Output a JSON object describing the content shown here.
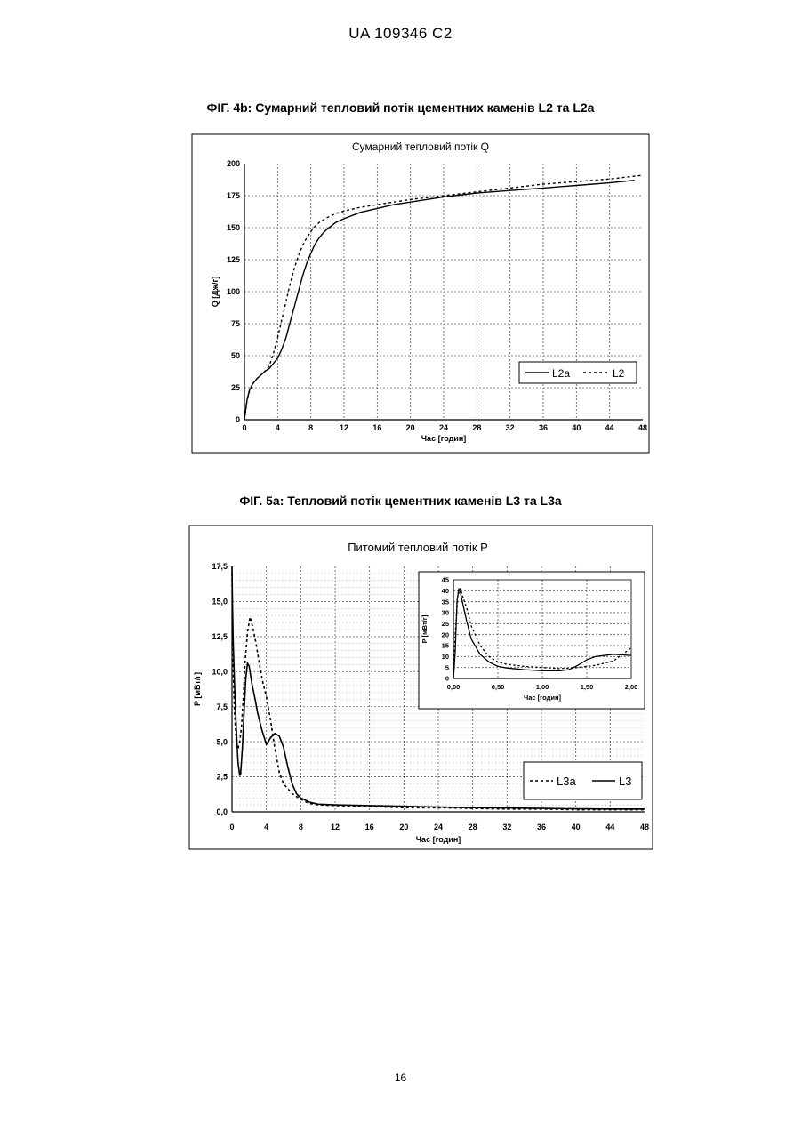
{
  "header": {
    "doc_id": "UA   109346   C2"
  },
  "fig1": {
    "caption": "ФІГ. 4b: Сумарний тепловий потік цементних каменів L2 та L2a"
  },
  "fig2": {
    "caption": "ФІГ. 5а: Тепловий потік цементних каменів L3 та L3a"
  },
  "footer": {
    "page_number": "16"
  },
  "chart_data": [
    {
      "type": "line",
      "title": "Сумарний тепловий потік Q",
      "xlabel": "Час [годин]",
      "ylabel": "Q [Дж/г]",
      "xlim": [
        0,
        48
      ],
      "ylim": [
        0,
        200
      ],
      "xticks": [
        0,
        4,
        8,
        12,
        16,
        20,
        24,
        28,
        32,
        36,
        40,
        44,
        48
      ],
      "yticks": [
        0,
        25,
        50,
        75,
        100,
        125,
        150,
        175,
        200
      ],
      "grid": true,
      "legend_position": "bottom-right",
      "series": [
        {
          "name": "L2a",
          "style": "solid",
          "x": [
            0,
            0.3,
            0.6,
            1,
            1.5,
            2,
            2.5,
            3,
            3.5,
            4,
            4.5,
            5,
            5.5,
            6,
            6.5,
            7,
            7.5,
            8,
            8.5,
            9,
            9.5,
            10,
            11,
            12,
            14,
            16,
            18,
            20,
            24,
            28,
            32,
            36,
            40,
            44,
            47
          ],
          "y": [
            0,
            15,
            23,
            28,
            32,
            35,
            38,
            40,
            44,
            48,
            55,
            64,
            76,
            88,
            100,
            112,
            122,
            130,
            137,
            142,
            146,
            149,
            154,
            157,
            162,
            165,
            168,
            170,
            174,
            177,
            179,
            181,
            183,
            185,
            187
          ]
        },
        {
          "name": "L2",
          "style": "dashed",
          "x": [
            0,
            0.3,
            0.6,
            1,
            1.5,
            2,
            2.5,
            3,
            3.5,
            4,
            4.5,
            5,
            5.5,
            6,
            6.5,
            7,
            7.5,
            8,
            8.5,
            9,
            9.5,
            10,
            11,
            12,
            14,
            16,
            18,
            20,
            24,
            28,
            32,
            36,
            40,
            44,
            48
          ],
          "y": [
            0,
            14,
            22,
            28,
            32,
            35,
            38,
            42,
            52,
            64,
            78,
            92,
            106,
            118,
            128,
            136,
            142,
            147,
            151,
            154,
            156,
            158,
            161,
            163,
            166,
            168,
            170,
            172,
            175,
            178,
            181,
            184,
            186,
            188,
            191
          ]
        }
      ]
    },
    {
      "type": "line",
      "title": "Питомий тепловий потік P",
      "xlabel": "Час [годин]",
      "ylabel": "P [мВт/г]",
      "xlim": [
        0,
        48
      ],
      "ylim": [
        0,
        17.5
      ],
      "xticks": [
        0,
        4,
        8,
        12,
        16,
        20,
        24,
        28,
        32,
        36,
        40,
        44,
        48
      ],
      "yticks": [
        "0,0",
        "2,5",
        "5,0",
        "7,5",
        "10,0",
        "12,5",
        "15,0",
        "17,5"
      ],
      "grid": true,
      "legend_position": "bottom-right",
      "series": [
        {
          "name": "L3a",
          "style": "dashed",
          "x": [
            0,
            0.05,
            0.15,
            0.3,
            0.5,
            0.7,
            0.9,
            1.1,
            1.3,
            1.5,
            1.8,
            2.1,
            2.4,
            2.8,
            3.2,
            3.6,
            4.0,
            4.5,
            5,
            5.5,
            6,
            7,
            8,
            9,
            10,
            12,
            16,
            20,
            24,
            28,
            32,
            36,
            40,
            44,
            48
          ],
          "y": [
            17,
            14,
            10,
            7,
            5,
            4.5,
            5,
            6,
            8,
            10.5,
            12.8,
            13.9,
            13.2,
            12,
            10.5,
            9.2,
            8.2,
            6.5,
            4.5,
            2.8,
            2.0,
            1.3,
            0.9,
            0.6,
            0.5,
            0.45,
            0.4,
            0.3,
            0.3,
            0.25,
            0.2,
            0.2,
            0.15,
            0.15,
            0.15
          ]
        },
        {
          "name": "L3",
          "style": "solid",
          "x": [
            0,
            0.05,
            0.15,
            0.3,
            0.5,
            0.7,
            0.9,
            1.0,
            1.2,
            1.4,
            1.6,
            1.8,
            2.0,
            2.3,
            2.7,
            3.0,
            3.5,
            4.0,
            4.5,
            5,
            5.5,
            6,
            6.5,
            7,
            7.5,
            8,
            9,
            10,
            12,
            16,
            20,
            24,
            28,
            32,
            36,
            40,
            44,
            48
          ],
          "y": [
            17.5,
            15,
            12,
            9,
            6,
            3.5,
            2.6,
            2.7,
            4.5,
            7,
            9.5,
            10.6,
            10.4,
            9.2,
            8,
            7,
            5.8,
            4.8,
            5.3,
            5.6,
            5.4,
            4.6,
            3.2,
            2.0,
            1.3,
            1.0,
            0.7,
            0.55,
            0.5,
            0.45,
            0.4,
            0.35,
            0.3,
            0.28,
            0.25,
            0.22,
            0.2,
            0.2
          ]
        }
      ],
      "inset": {
        "type": "line",
        "xlabel": "Час [годин]",
        "ylabel": "P [мВт/г]",
        "xlim": [
          0,
          2
        ],
        "ylim": [
          0,
          45
        ],
        "xticks": [
          "0,00",
          "0,50",
          "1,00",
          "1,50",
          "2,00"
        ],
        "yticks": [
          0,
          5,
          10,
          15,
          20,
          25,
          30,
          35,
          40,
          45
        ],
        "grid": true,
        "series": [
          {
            "name": "L3a",
            "style": "dashed",
            "x": [
              0,
              0.02,
              0.05,
              0.08,
              0.1,
              0.15,
              0.2,
              0.3,
              0.4,
              0.5,
              0.6,
              0.8,
              1.0,
              1.2,
              1.4,
              1.6,
              1.8,
              2.0
            ],
            "y": [
              0,
              20,
              38,
              41,
              38,
              32,
              24,
              15,
              10,
              7.5,
              6.5,
              5.5,
              5,
              4.5,
              5,
              6,
              8,
              14
            ]
          },
          {
            "name": "L3",
            "style": "solid",
            "x": [
              0,
              0.02,
              0.04,
              0.06,
              0.08,
              0.1,
              0.15,
              0.2,
              0.3,
              0.4,
              0.5,
              0.6,
              0.8,
              1.0,
              1.2,
              1.3,
              1.4,
              1.5,
              1.6,
              1.8,
              2.0
            ],
            "y": [
              0,
              12,
              35,
              41,
              39,
              35,
              26,
              18,
              11,
              7.5,
              5.5,
              4.8,
              4,
              3.5,
              3.5,
              4,
              6,
              8.5,
              10,
              11,
              10.5
            ]
          }
        ]
      }
    }
  ]
}
